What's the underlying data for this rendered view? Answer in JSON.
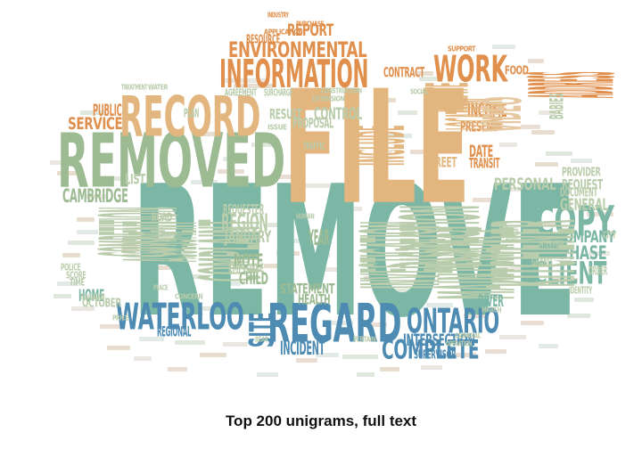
{
  "caption": "Top 200 unigrams, full text",
  "palette": {
    "orange": "#e08f4c",
    "tan": "#e3b67f",
    "sage": "#9dbb93",
    "teal": "#7cb7a6",
    "blue": "#4d8bb3",
    "lightsage": "#b9ccab",
    "lighttan": "#e6c9a2"
  },
  "words": [
    {
      "text": "REMOVE",
      "color": "teal"
    },
    {
      "text": "FILE",
      "color": "tan"
    },
    {
      "text": "REMOVED",
      "color": "sage"
    },
    {
      "text": "RECORD",
      "color": "tan"
    },
    {
      "text": "INFORMATION",
      "color": "orange"
    },
    {
      "text": "ENVIRONMENTAL",
      "color": "orange"
    },
    {
      "text": "REPORT",
      "color": "orange"
    },
    {
      "text": "WORK",
      "color": "orange"
    },
    {
      "text": "ADDRESS",
      "color": "orange"
    },
    {
      "text": "REGARD",
      "color": "blue"
    },
    {
      "text": "WATERLOO",
      "color": "blue"
    },
    {
      "text": "ONTARIO",
      "color": "blue"
    },
    {
      "text": "COPY",
      "color": "teal"
    },
    {
      "text": "COMPLETE",
      "color": "blue"
    },
    {
      "text": "CLIENT",
      "color": "teal"
    },
    {
      "text": "COMPANY",
      "color": "teal"
    },
    {
      "text": "PHASE",
      "color": "teal"
    },
    {
      "text": "PERSONAL",
      "color": "lightsage"
    },
    {
      "text": "CAMBRIDGE",
      "color": "sage"
    },
    {
      "text": "SERVICE",
      "color": "orange"
    },
    {
      "text": "PUBLIC",
      "color": "orange"
    },
    {
      "text": "INCOME",
      "color": "orange"
    },
    {
      "text": "PRESENT",
      "color": "orange"
    },
    {
      "text": "DATE",
      "color": "orange"
    },
    {
      "text": "TRANSIT",
      "color": "orange"
    },
    {
      "text": "RESOURCE",
      "color": "orange"
    },
    {
      "text": "CONTRACT",
      "color": "orange"
    },
    {
      "text": "RELATE",
      "color": "tan"
    },
    {
      "text": "LOCATION",
      "color": "tan"
    },
    {
      "text": "INCLUDE",
      "color": "tan"
    },
    {
      "text": "STREET",
      "color": "tan"
    },
    {
      "text": "VIDEO",
      "color": "lighttan"
    },
    {
      "text": "FOOD",
      "color": "orange"
    },
    {
      "text": "REGION",
      "color": "lightsage"
    },
    {
      "text": "JANUARY",
      "color": "lightsage"
    },
    {
      "text": "COMPLAINT",
      "color": "lightsage"
    },
    {
      "text": "REQUESTER",
      "color": "lightsage"
    },
    {
      "text": "COMPETITION",
      "color": "lightsage"
    },
    {
      "text": "ASSESSMENT",
      "color": "lightsage"
    },
    {
      "text": "NOTE",
      "color": "sage"
    },
    {
      "text": "CHILD",
      "color": "sage"
    },
    {
      "text": "YEAR",
      "color": "sage"
    },
    {
      "text": "STATEMENT",
      "color": "sage"
    },
    {
      "text": "HEALTH",
      "color": "sage"
    },
    {
      "text": "INVESTIGATION",
      "color": "lightsage"
    },
    {
      "text": "INSPECTION",
      "color": "lightsage"
    },
    {
      "text": "MAINTENANCE",
      "color": "lightsage"
    },
    {
      "text": "KITCHENER",
      "color": "lightsage"
    },
    {
      "text": "INTERSECTION",
      "color": "blue"
    },
    {
      "text": "INCIDENT",
      "color": "blue"
    },
    {
      "text": "SITE",
      "color": "blue"
    },
    {
      "text": "RIVER",
      "color": "teal"
    },
    {
      "text": "HOME",
      "color": "teal"
    },
    {
      "text": "REGIONAL",
      "color": "blue"
    },
    {
      "text": "SUPERVISOR",
      "color": "blue"
    },
    {
      "text": "REQUEST",
      "color": "lightsage"
    },
    {
      "text": "GENERAL",
      "color": "lightsage"
    },
    {
      "text": "DOCUMENT",
      "color": "lightsage"
    },
    {
      "text": "PROVIDER",
      "color": "lightsage"
    },
    {
      "text": "CONTROL",
      "color": "lightsage"
    },
    {
      "text": "PROPOSAL",
      "color": "lightsage"
    },
    {
      "text": "RESULT",
      "color": "lightsage"
    },
    {
      "text": "ROAD",
      "color": "lightsage"
    },
    {
      "text": "EMPLOYEE",
      "color": "lightsage"
    },
    {
      "text": "OCTOBER",
      "color": "lightsage"
    },
    {
      "text": "LIST",
      "color": "lightsage"
    },
    {
      "text": "PLAN",
      "color": "lightsage"
    },
    {
      "text": "APPLICATION",
      "color": "orange"
    },
    {
      "text": "PURCHASE",
      "color": "orange"
    },
    {
      "text": "SUPPORT",
      "color": "orange"
    },
    {
      "text": "AGREEMENT",
      "color": "lightsage"
    },
    {
      "text": "SURCHARGE",
      "color": "lightsage"
    },
    {
      "text": "TREATMENT",
      "color": "lightsage"
    },
    {
      "text": "WATER",
      "color": "lightsage"
    },
    {
      "text": "HUMAN",
      "color": "lightsage"
    },
    {
      "text": "CONSTRUCTION",
      "color": "lightsage"
    },
    {
      "text": "EXTENSION",
      "color": "lightsage"
    },
    {
      "text": "ISSUE",
      "color": "lightsage"
    },
    {
      "text": "TRAFFIC",
      "color": "lightsage"
    },
    {
      "text": "CITY",
      "color": "lightsage"
    },
    {
      "text": "INTERVIEW",
      "color": "lightsage"
    },
    {
      "text": "GRAND",
      "color": "lightsage"
    },
    {
      "text": "ORDER",
      "color": "lightsage"
    },
    {
      "text": "IDENTITY",
      "color": "lightsage"
    },
    {
      "text": "POLICE",
      "color": "lightsage"
    },
    {
      "text": "SCORE",
      "color": "lightsage"
    },
    {
      "text": "TIME",
      "color": "lightsage"
    },
    {
      "text": "EVALUATION",
      "color": "lightsage"
    },
    {
      "text": "BEAR",
      "color": "lightsage"
    },
    {
      "text": "CRIMINAL",
      "color": "lightsage"
    },
    {
      "text": "OPERATION",
      "color": "lightsage"
    },
    {
      "text": "PERTAIN",
      "color": "lightsage"
    },
    {
      "text": "PLACE",
      "color": "lightsage"
    },
    {
      "text": "MARCH",
      "color": "lightsage"
    },
    {
      "text": "PROPERTY",
      "color": "lightsage"
    },
    {
      "text": "CONCERN",
      "color": "lightsage"
    },
    {
      "text": "PRICE",
      "color": "lightsage"
    },
    {
      "text": "BABIES",
      "color": "lightsage"
    },
    {
      "text": "SOCIAL",
      "color": "lightsage"
    },
    {
      "text": "INDUSTRY",
      "color": "orange"
    }
  ]
}
